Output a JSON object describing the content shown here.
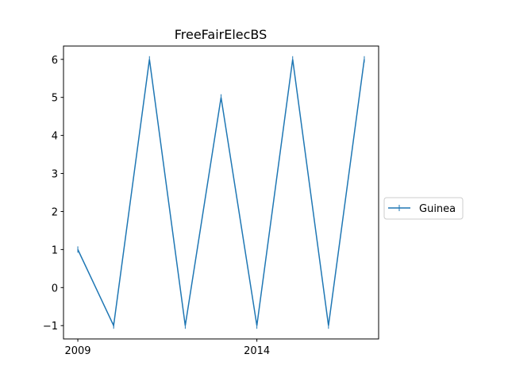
{
  "chart_data": {
    "type": "line",
    "title": "FreeFairElecBS",
    "xlabel": "",
    "ylabel": "",
    "x": [
      2009,
      2010,
      2011,
      2012,
      2013,
      2014,
      2015,
      2016,
      2017
    ],
    "xlim": [
      2008.6,
      2017.4
    ],
    "ylim": [
      -1.35,
      6.35
    ],
    "xticks": [
      2009,
      2014
    ],
    "xtick_labels": [
      "2009",
      "2014"
    ],
    "yticks": [
      -1,
      0,
      1,
      2,
      3,
      4,
      5,
      6
    ],
    "ytick_labels": [
      "−1",
      "0",
      "1",
      "2",
      "3",
      "4",
      "5",
      "6"
    ],
    "series": [
      {
        "name": "Guinea",
        "color": "#1f77b4",
        "marker": "|",
        "values": [
          1,
          -1,
          6,
          -1,
          5,
          -1,
          6,
          -1,
          6
        ]
      }
    ],
    "legend": {
      "placement": "outside-right"
    },
    "grid": false
  }
}
